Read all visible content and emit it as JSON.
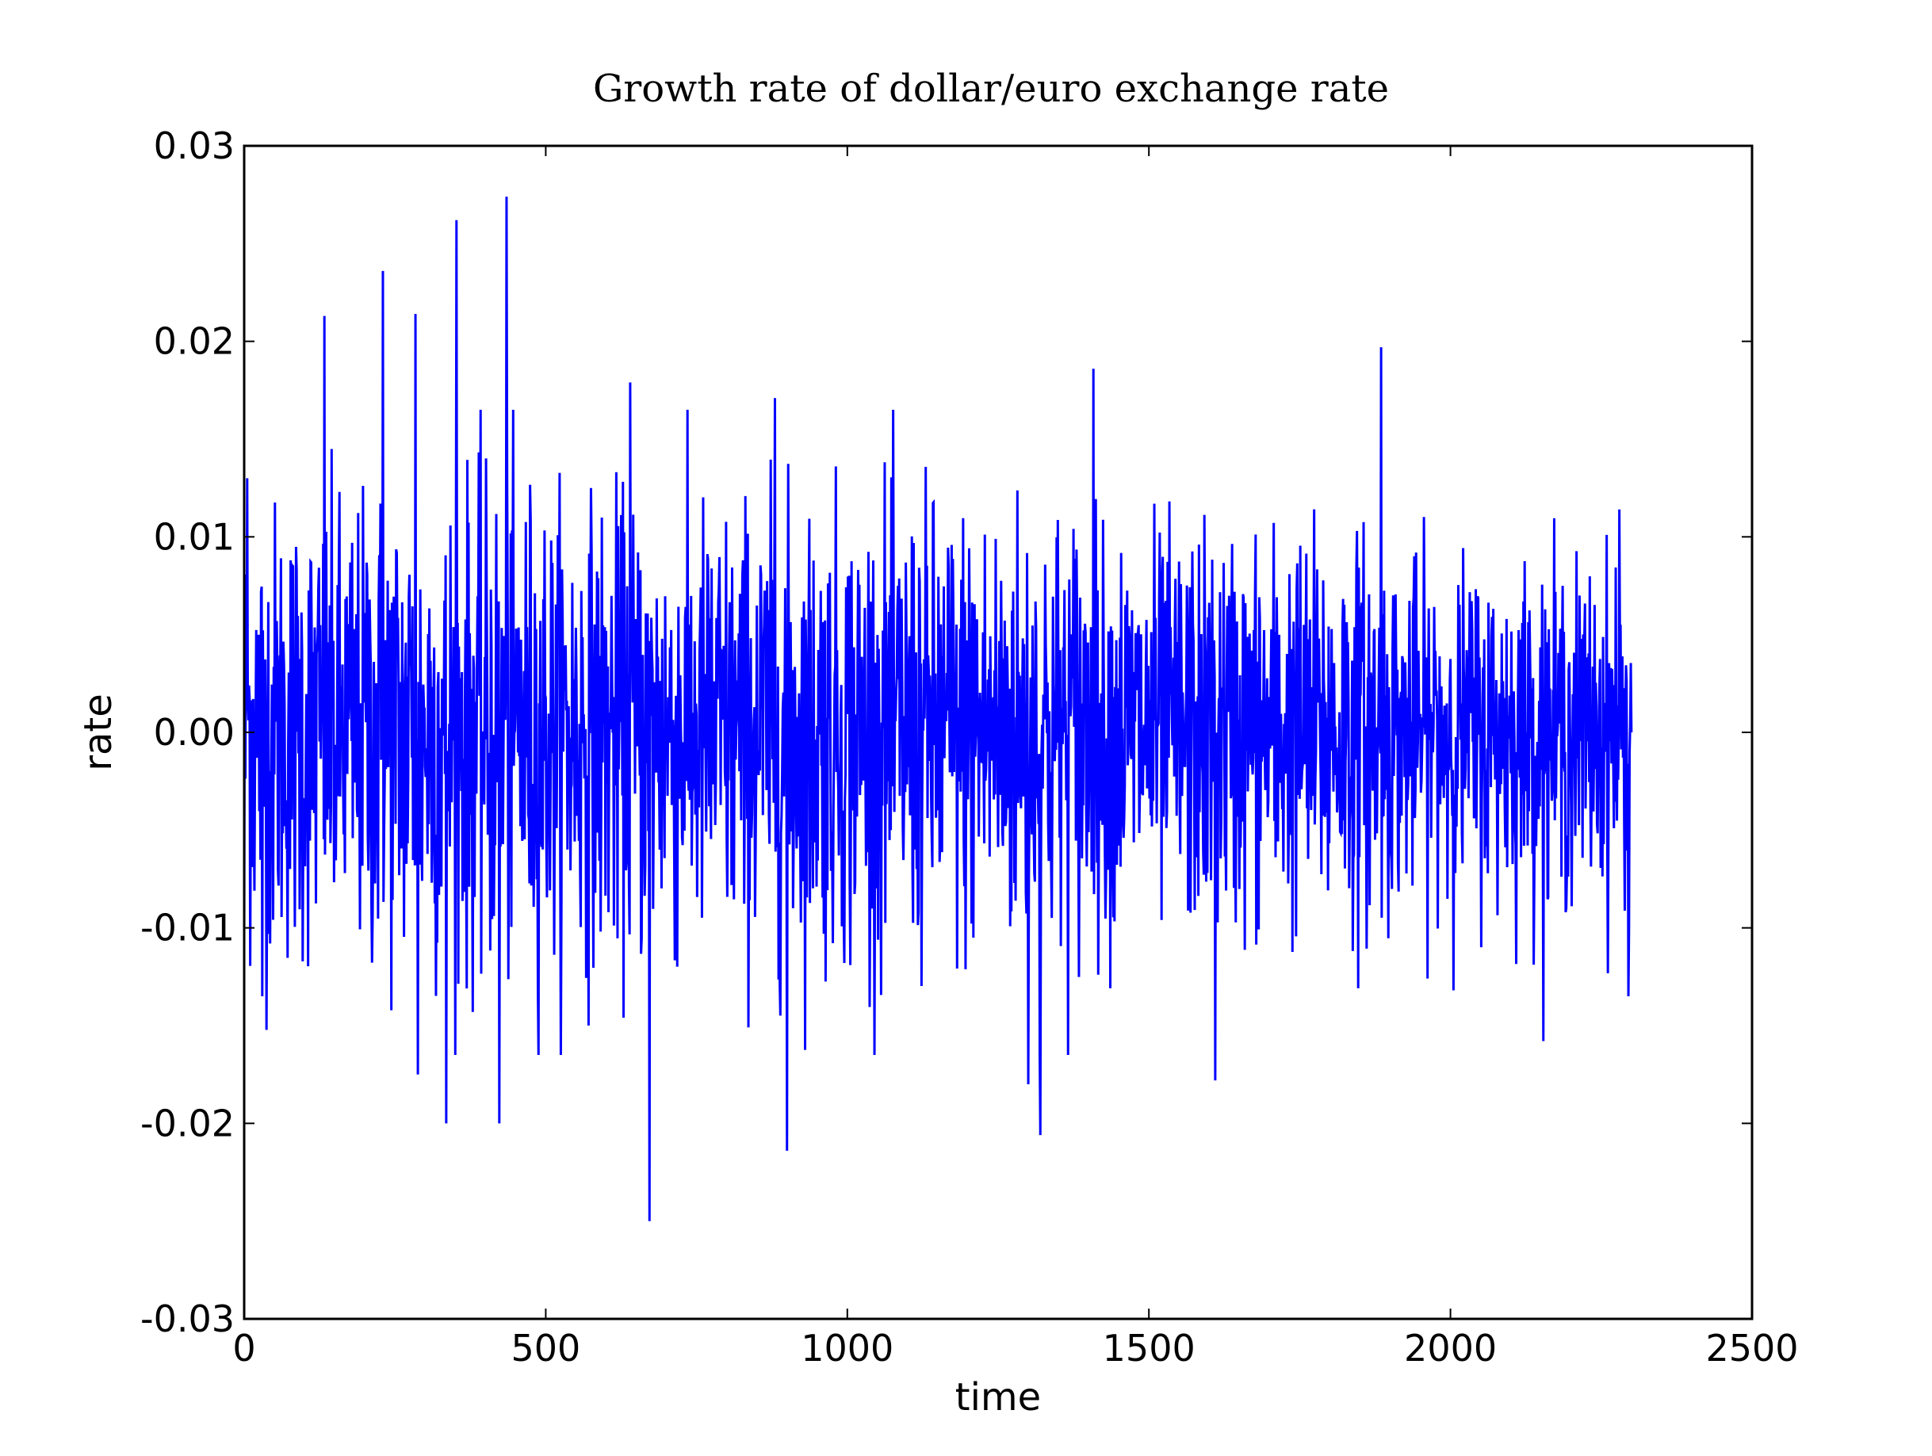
{
  "chart_data": {
    "type": "line",
    "title": "Growth rate of dollar/euro exchange rate",
    "xlabel": "time",
    "ylabel": "rate",
    "xlim": [
      0,
      2500
    ],
    "ylim": [
      -0.03,
      0.03
    ],
    "xticks": [
      {
        "value": 0,
        "label": "0"
      },
      {
        "value": 500,
        "label": "500"
      },
      {
        "value": 1000,
        "label": "1000"
      },
      {
        "value": 1500,
        "label": "1500"
      },
      {
        "value": 2000,
        "label": "2000"
      },
      {
        "value": 2500,
        "label": "2500"
      }
    ],
    "yticks": [
      {
        "value": 0.03,
        "label": "0.03"
      },
      {
        "value": 0.02,
        "label": "0.02"
      },
      {
        "value": 0.01,
        "label": "0.01"
      },
      {
        "value": 0.0,
        "label": "0.00"
      },
      {
        "value": -0.01,
        "label": "-0.01"
      },
      {
        "value": -0.02,
        "label": "-0.02"
      },
      {
        "value": -0.03,
        "label": "-0.03"
      }
    ],
    "grid": false,
    "series": [
      {
        "color": "#0000ff",
        "n_points": 2300,
        "key_points": [
          {
            "x": 0,
            "y": -0.011
          },
          {
            "x": 5,
            "y": 0.013
          },
          {
            "x": 30,
            "y": -0.0135
          },
          {
            "x": 133,
            "y": 0.0213
          },
          {
            "x": 230,
            "y": 0.0236
          },
          {
            "x": 284,
            "y": 0.0214
          },
          {
            "x": 288,
            "y": -0.0175
          },
          {
            "x": 335,
            "y": -0.02
          },
          {
            "x": 352,
            "y": 0.0262
          },
          {
            "x": 423,
            "y": -0.02
          },
          {
            "x": 435,
            "y": 0.0274
          },
          {
            "x": 640,
            "y": 0.0179
          },
          {
            "x": 672,
            "y": -0.025
          },
          {
            "x": 880,
            "y": 0.0171
          },
          {
            "x": 900,
            "y": -0.0214
          },
          {
            "x": 1300,
            "y": -0.018
          },
          {
            "x": 1320,
            "y": -0.0206
          },
          {
            "x": 1408,
            "y": 0.0186
          },
          {
            "x": 1610,
            "y": -0.0178
          },
          {
            "x": 1885,
            "y": 0.0197
          },
          {
            "x": 2280,
            "y": 0.0114
          },
          {
            "x": 2295,
            "y": -0.0135
          },
          {
            "x": 2300,
            "y": 0.0
          }
        ]
      }
    ]
  }
}
